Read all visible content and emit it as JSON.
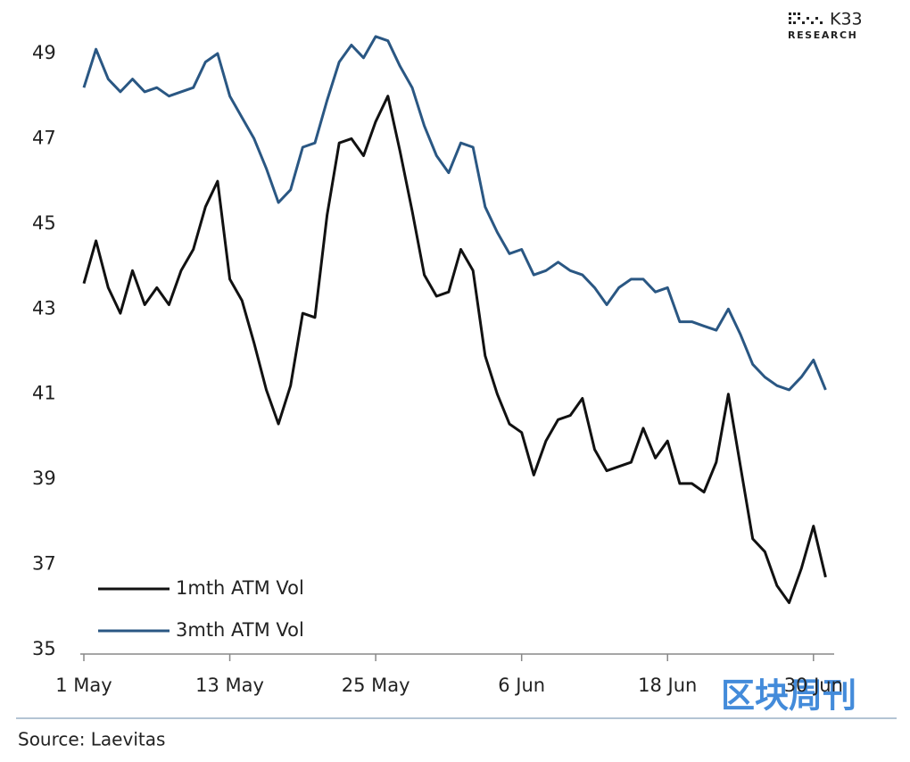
{
  "logo": {
    "name": "K33",
    "subtitle": "RESEARCH"
  },
  "source": "Source: Laevitas",
  "watermark": "区块周刊",
  "chart_data": {
    "type": "line",
    "categories": [
      "1 May",
      null,
      null,
      null,
      null,
      null,
      null,
      null,
      null,
      null,
      null,
      null,
      "13 May",
      null,
      null,
      null,
      null,
      null,
      null,
      null,
      null,
      null,
      null,
      null,
      "25 May",
      null,
      null,
      null,
      null,
      null,
      null,
      null,
      null,
      null,
      null,
      null,
      "6 Jun",
      null,
      null,
      null,
      null,
      null,
      null,
      null,
      null,
      null,
      null,
      null,
      "18 Jun",
      null,
      null,
      null,
      null,
      null,
      null,
      null,
      null,
      null,
      null,
      null,
      "30 Jun",
      null
    ],
    "series": [
      {
        "name": "1mth ATM Vol",
        "color": "#111111",
        "values": [
          43.6,
          44.6,
          43.5,
          42.9,
          43.9,
          43.1,
          43.5,
          43.1,
          43.9,
          44.4,
          45.4,
          46.0,
          43.7,
          43.2,
          42.2,
          41.1,
          40.3,
          41.2,
          42.9,
          42.8,
          45.2,
          46.9,
          47.0,
          46.6,
          47.4,
          48.0,
          46.7,
          45.3,
          43.8,
          43.3,
          43.4,
          44.4,
          43.9,
          41.9,
          41.0,
          40.3,
          40.1,
          39.1,
          39.9,
          40.4,
          40.5,
          40.9,
          39.7,
          39.2,
          39.3,
          39.4,
          40.2,
          39.5,
          39.9,
          38.9,
          38.9,
          38.7,
          39.4,
          41.0,
          39.3,
          37.6,
          37.3,
          36.5,
          36.1,
          36.9,
          37.9,
          36.7
        ]
      },
      {
        "name": "3mth ATM Vol",
        "color": "#2a5783",
        "values": [
          48.2,
          49.1,
          48.4,
          48.1,
          48.4,
          48.1,
          48.2,
          48.0,
          48.1,
          48.2,
          48.8,
          49.0,
          48.0,
          47.5,
          47.0,
          46.3,
          45.5,
          45.8,
          46.8,
          46.9,
          47.9,
          48.8,
          49.2,
          48.9,
          49.4,
          49.3,
          48.7,
          48.2,
          47.3,
          46.6,
          46.2,
          46.9,
          46.8,
          45.4,
          44.8,
          44.3,
          44.4,
          43.8,
          43.9,
          44.1,
          43.9,
          43.8,
          43.5,
          43.1,
          43.5,
          43.7,
          43.7,
          43.4,
          43.5,
          42.7,
          42.7,
          42.6,
          42.5,
          43.0,
          42.4,
          41.7,
          41.4,
          41.2,
          41.1,
          41.4,
          41.8,
          41.1
        ]
      }
    ],
    "ylim": [
      35,
      49
    ],
    "yticks": [
      35,
      37,
      39,
      41,
      43,
      45,
      47,
      49
    ],
    "legend": "lower left"
  }
}
